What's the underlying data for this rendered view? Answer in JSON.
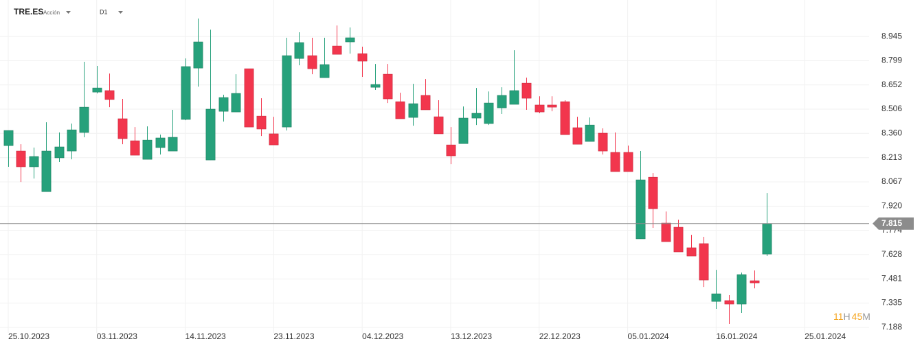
{
  "header": {
    "symbol": "TRE.ES",
    "instrument_type": "Acción",
    "timeframe": "D1"
  },
  "countdown": {
    "hours": "11",
    "hours_unit": "H",
    "minutes": "45",
    "minutes_unit": "M"
  },
  "chart_data": {
    "type": "candlestick",
    "open": [
      8.286,
      8.253,
      8.158,
      8.008,
      8.212,
      8.253,
      8.365,
      8.609,
      8.618,
      8.448,
      8.315,
      8.203,
      8.274,
      8.253,
      8.444,
      8.754,
      8.199,
      8.493,
      8.489,
      8.75,
      8.464,
      8.357,
      8.398,
      8.812,
      8.829,
      8.696,
      8.887,
      8.912,
      8.841,
      8.638,
      8.717,
      8.551,
      8.456,
      8.589,
      8.46,
      8.29,
      8.298,
      8.452,
      8.419,
      8.514,
      8.535,
      8.663,
      8.531,
      8.531,
      8.551,
      8.394,
      8.311,
      8.361,
      8.245,
      8.245,
      7.723,
      8.095,
      7.818,
      7.793,
      7.669,
      7.694,
      7.345,
      7.35,
      7.329,
      7.47,
      7.631
    ],
    "high": [
      8.377,
      8.294,
      8.274,
      8.427,
      8.365,
      8.419,
      8.792,
      8.767,
      8.721,
      8.568,
      8.398,
      8.402,
      8.352,
      8.502,
      8.812,
      9.053,
      8.986,
      8.593,
      8.717,
      8.75,
      8.572,
      8.46,
      8.937,
      8.97,
      8.937,
      8.937,
      9.011,
      8.999,
      8.883,
      8.779,
      8.779,
      8.605,
      8.659,
      8.688,
      8.56,
      8.398,
      8.522,
      8.634,
      8.613,
      8.638,
      8.862,
      8.696,
      8.584,
      8.584,
      8.56,
      8.46,
      8.456,
      8.39,
      8.365,
      8.286,
      8.253,
      8.12,
      7.888,
      7.839,
      7.747,
      7.735,
      7.536,
      7.383,
      7.519,
      7.532,
      8.0
    ],
    "low": [
      8.158,
      8.066,
      8.087,
      8.008,
      8.187,
      8.203,
      8.336,
      8.601,
      8.518,
      8.294,
      8.228,
      8.203,
      8.232,
      8.253,
      8.439,
      8.642,
      8.199,
      8.431,
      8.489,
      8.398,
      8.344,
      8.29,
      8.377,
      8.771,
      8.717,
      8.696,
      8.837,
      8.841,
      8.701,
      8.622,
      8.543,
      8.448,
      8.406,
      8.502,
      8.357,
      8.174,
      8.298,
      8.41,
      8.41,
      8.477,
      8.535,
      8.502,
      8.481,
      8.493,
      8.352,
      8.294,
      8.311,
      8.232,
      8.129,
      8.129,
      7.723,
      7.789,
      7.706,
      7.644,
      7.619,
      7.432,
      7.3,
      7.209,
      7.275,
      7.424,
      7.619
    ],
    "close": [
      8.377,
      8.158,
      8.22,
      8.253,
      8.278,
      8.381,
      8.518,
      8.634,
      8.564,
      8.328,
      8.228,
      8.319,
      8.332,
      8.336,
      8.763,
      8.912,
      8.506,
      8.576,
      8.601,
      8.398,
      8.386,
      8.29,
      8.829,
      8.908,
      8.75,
      8.775,
      8.837,
      8.937,
      8.796,
      8.655,
      8.568,
      8.448,
      8.539,
      8.502,
      8.357,
      8.224,
      8.452,
      8.481,
      8.543,
      8.589,
      8.618,
      8.572,
      8.489,
      8.518,
      8.352,
      8.294,
      8.41,
      8.253,
      8.129,
      8.129,
      8.079,
      7.905,
      7.706,
      7.644,
      7.619,
      7.474,
      7.391,
      7.329,
      7.507,
      7.457,
      7.815
    ],
    "up_color": "#26a17b",
    "down_color": "#f2364d",
    "current_price": 7.815,
    "xlim": [
      -0.65,
      68.1
    ],
    "xticks": [
      {
        "value": 0,
        "label": "25.10.2023"
      },
      {
        "value": 7,
        "label": "03.11.2023"
      },
      {
        "value": 14,
        "label": "14.11.2023"
      },
      {
        "value": 21,
        "label": "23.11.2023"
      },
      {
        "value": 28,
        "label": "04.12.2023"
      },
      {
        "value": 35,
        "label": "13.12.2023"
      },
      {
        "value": 42,
        "label": "22.12.2023"
      },
      {
        "value": 49,
        "label": "05.01.2024"
      },
      {
        "value": 56,
        "label": "16.01.2024"
      },
      {
        "value": 63,
        "label": "25.01.2024"
      }
    ],
    "ylim": [
      7.155,
      9.165
    ],
    "yticks": [
      8.945,
      8.799,
      8.652,
      8.506,
      {
        "value": 8.36,
        "label": "8.360"
      },
      8.213,
      8.067,
      {
        "value": 7.92,
        "label": "7.920"
      },
      7.774,
      7.628,
      7.481,
      7.335,
      7.188
    ],
    "grid": true
  }
}
